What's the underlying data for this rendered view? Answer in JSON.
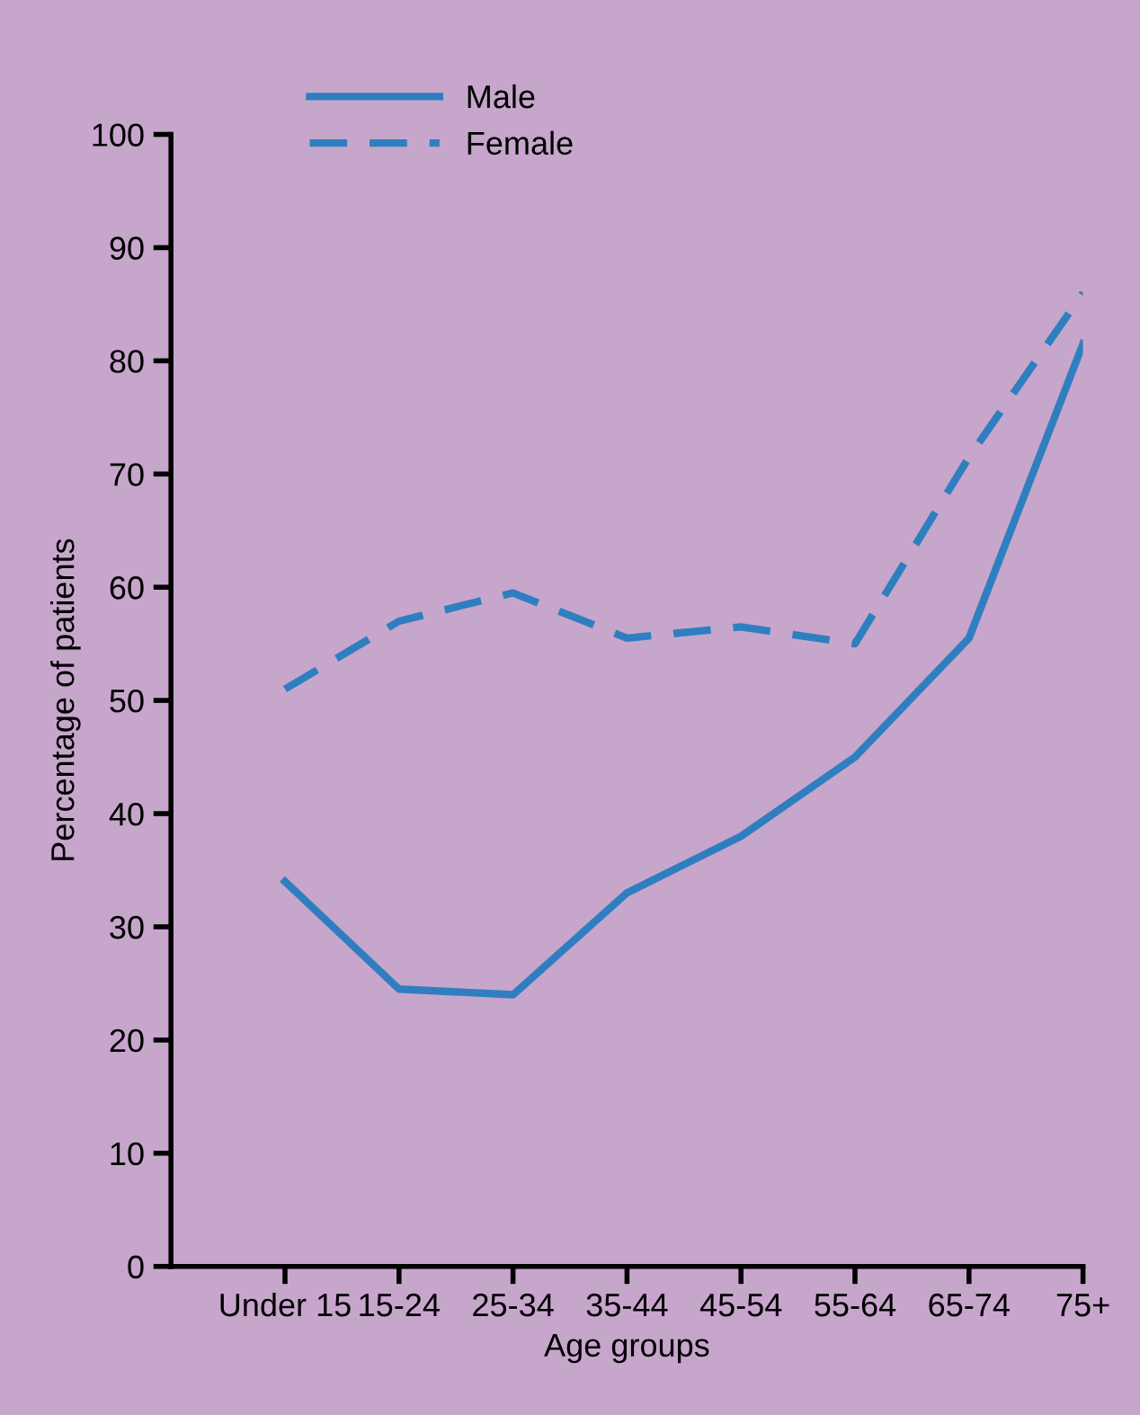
{
  "chart_data": {
    "type": "line",
    "xlabel": "Age groups",
    "ylabel": "Percentage of patients",
    "categories": [
      "Under 15",
      "15-24",
      "25-34",
      "35-44",
      "45-54",
      "55-64",
      "65-74",
      "75+"
    ],
    "series": [
      {
        "name": "Male",
        "color": "#2f7fc0",
        "line_style": "solid",
        "values": [
          34,
          24.5,
          24,
          33,
          38,
          45,
          55.5,
          81.5
        ]
      },
      {
        "name": "Female",
        "color": "#2f7fc0",
        "line_style": "dashed",
        "values": [
          51,
          57,
          59.5,
          55.5,
          56.5,
          55,
          71.5,
          86
        ]
      }
    ],
    "ylim": [
      0,
      100
    ],
    "yticks": [
      0,
      10,
      20,
      30,
      40,
      50,
      60,
      70,
      80,
      90,
      100
    ],
    "grid": false,
    "legend": "top left",
    "marker": "none"
  }
}
